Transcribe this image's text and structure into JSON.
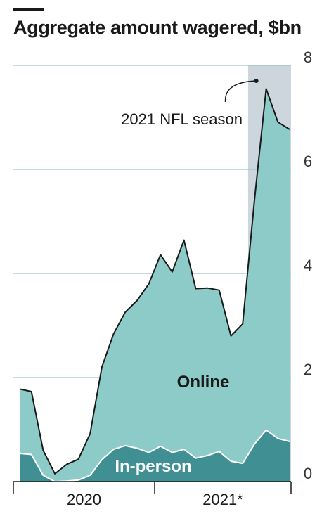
{
  "chart_data": {
    "type": "area",
    "title": "Aggregate amount wagered, $bn",
    "ylim": [
      0,
      8
    ],
    "y_ticks": [
      "0",
      "2",
      "4",
      "6",
      "8"
    ],
    "x_labels": [
      "2020",
      "2021*"
    ],
    "months": [
      "2020-01",
      "2020-02",
      "2020-03",
      "2020-04",
      "2020-05",
      "2020-06",
      "2020-07",
      "2020-08",
      "2020-09",
      "2020-10",
      "2020-11",
      "2020-12",
      "2021-01",
      "2021-02",
      "2021-03",
      "2021-04",
      "2021-05",
      "2021-06",
      "2021-07",
      "2021-08",
      "2021-09",
      "2021-10",
      "2021-11",
      "2021-12"
    ],
    "series": [
      {
        "name": "Online",
        "values": [
          1.78,
          1.73,
          0.6,
          0.15,
          0.33,
          0.43,
          0.92,
          2.2,
          2.84,
          3.26,
          3.48,
          3.8,
          4.36,
          4.03,
          4.64,
          3.71,
          3.72,
          3.68,
          2.8,
          3.03,
          5.4,
          7.55,
          6.91,
          6.77
        ]
      },
      {
        "name": "In-person",
        "values": [
          0.54,
          0.52,
          0.12,
          0.0,
          0.01,
          0.03,
          0.12,
          0.42,
          0.62,
          0.69,
          0.64,
          0.56,
          0.68,
          0.56,
          0.62,
          0.45,
          0.5,
          0.58,
          0.39,
          0.35,
          0.72,
          0.99,
          0.83,
          0.77
        ]
      }
    ],
    "annotation": {
      "text": "2021 NFL season"
    },
    "shaded_period": [
      "2021-09",
      "2021-12"
    ],
    "grid": true,
    "colors": {
      "online": "#8ccbc7",
      "in_person": "#3f8f93",
      "shade": "#ccd6dc",
      "grid": "#9bc4ce"
    }
  }
}
